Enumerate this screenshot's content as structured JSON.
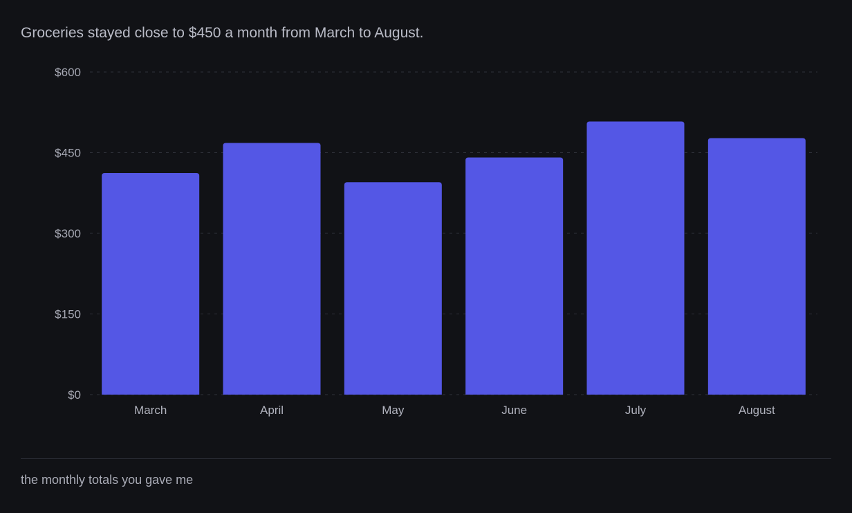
{
  "chart_data": {
    "type": "bar",
    "title": "",
    "subtitle": "Groceries stayed close to $450 a month from March to August.",
    "xlabel": "",
    "ylabel": "",
    "categories": [
      "March",
      "April",
      "May",
      "June",
      "July",
      "August"
    ],
    "values": [
      412,
      468,
      395,
      441,
      508,
      477
    ],
    "ylim": [
      0,
      600
    ],
    "yticks": [
      0,
      150,
      300,
      450,
      600
    ],
    "ytick_labels": [
      "$0",
      "$150",
      "$300",
      "$450",
      "$600"
    ],
    "grid": true,
    "legend": "none",
    "bar_color": "#5457e5",
    "footnote": "the monthly totals you gave me"
  }
}
